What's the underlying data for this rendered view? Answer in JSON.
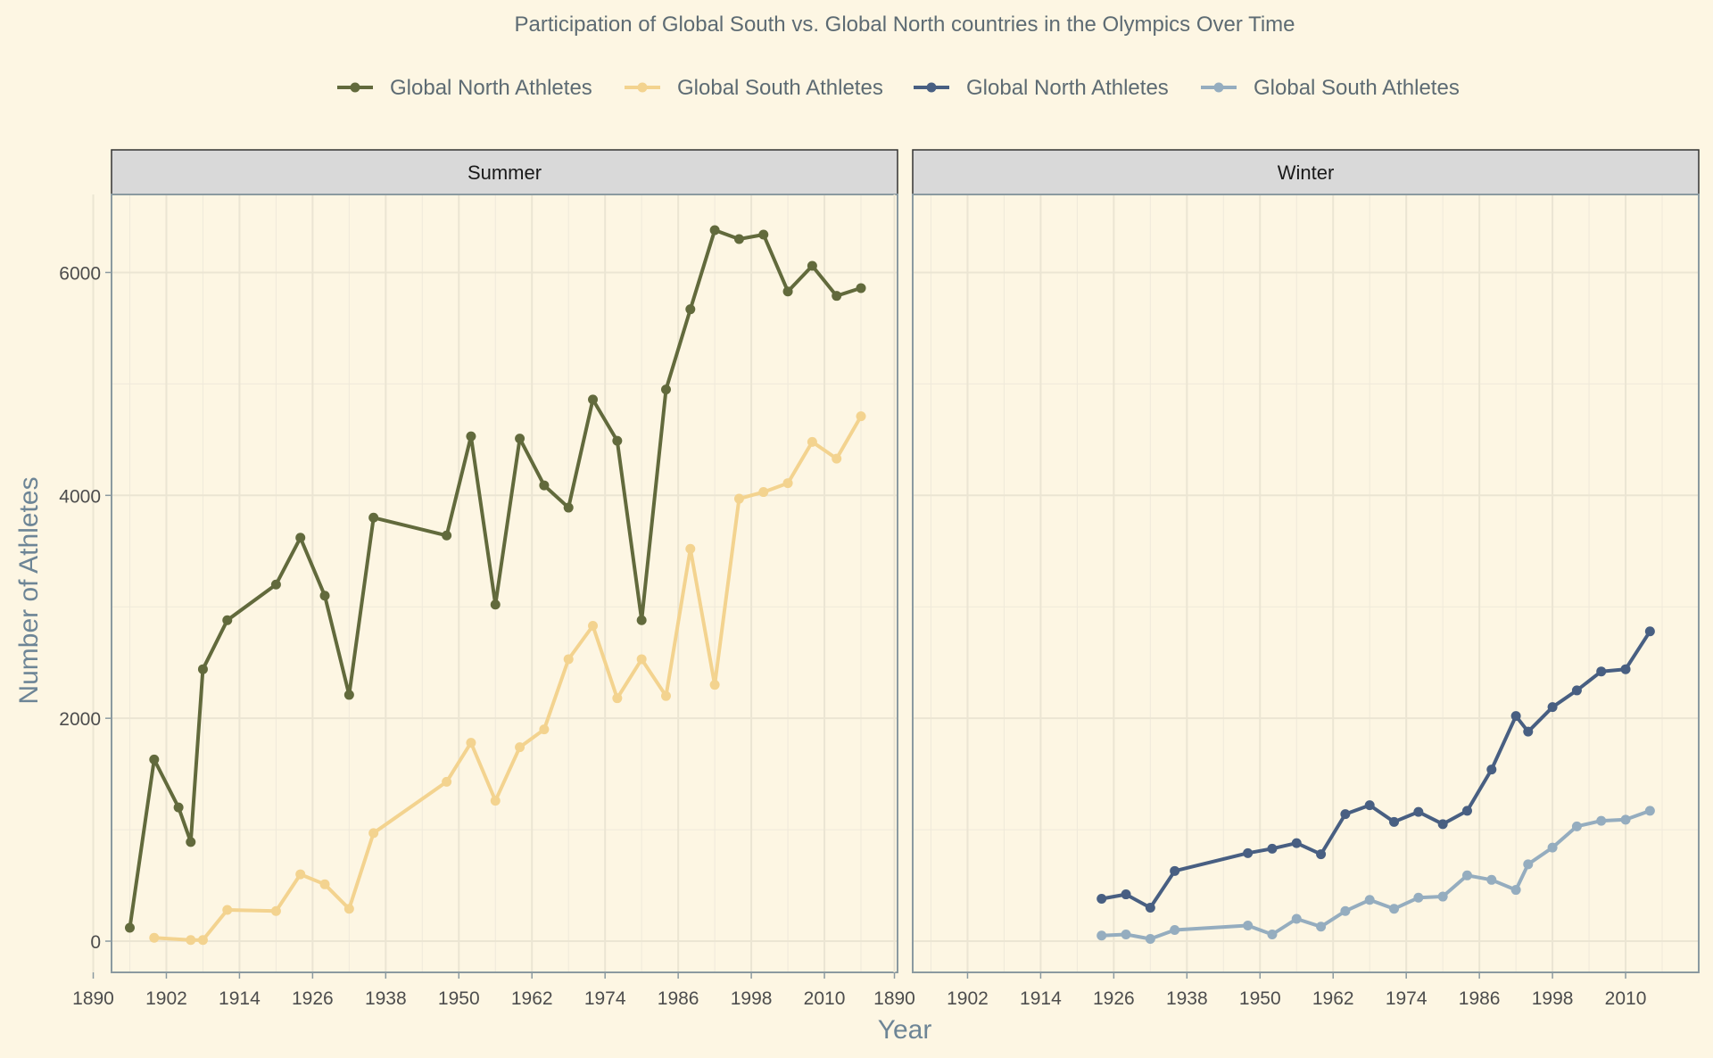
{
  "chart_data": {
    "type": "line",
    "title": "Participation of Global South vs. Global North countries in the Olympics Over Time",
    "xlabel": "Year",
    "ylabel": "Number of Athletes",
    "legend_position": "top",
    "grid": true,
    "x_ticks": [
      1890,
      1902,
      1914,
      1926,
      1938,
      1950,
      1962,
      1974,
      1986,
      1998,
      2010
    ],
    "y_ticks": [
      0,
      2000,
      4000,
      6000
    ],
    "xlim": [
      1893,
      2022
    ],
    "ylim": [
      -280,
      6700
    ],
    "legend": [
      {
        "label": "Global North Athletes",
        "color": "#626a3c"
      },
      {
        "label": "Global South Athletes",
        "color": "#f3d38f"
      },
      {
        "label": "Global North Athletes",
        "color": "#485f82"
      },
      {
        "label": "Global South Athletes",
        "color": "#95adbf"
      }
    ],
    "panels": [
      {
        "label": "Summer",
        "series": [
          {
            "name": "Global North Athletes",
            "color": "#626a3c",
            "x": [
              1896,
              1900,
              1904,
              1906,
              1908,
              1912,
              1920,
              1924,
              1928,
              1932,
              1936,
              1948,
              1952,
              1956,
              1960,
              1964,
              1968,
              1972,
              1976,
              1980,
              1984,
              1988,
              1992,
              1996,
              2000,
              2004,
              2008,
              2012,
              2016
            ],
            "y": [
              120,
              1630,
              1200,
              890,
              2440,
              2880,
              3200,
              3620,
              3100,
              2210,
              3800,
              3640,
              4530,
              3020,
              4510,
              4090,
              3890,
              4860,
              4490,
              2880,
              4950,
              5670,
              6380,
              6300,
              6340,
              5830,
              6060,
              5790,
              5860
            ]
          },
          {
            "name": "Global South Athletes",
            "color": "#f3d38f",
            "x": [
              1900,
              1906,
              1908,
              1912,
              1920,
              1924,
              1928,
              1932,
              1936,
              1948,
              1952,
              1956,
              1960,
              1964,
              1968,
              1972,
              1976,
              1980,
              1984,
              1988,
              1992,
              1996,
              2000,
              2004,
              2008,
              2012,
              2016
            ],
            "y": [
              30,
              10,
              10,
              280,
              270,
              600,
              510,
              290,
              970,
              1430,
              1780,
              1260,
              1740,
              1900,
              2530,
              2830,
              2180,
              2530,
              2200,
              3520,
              2300,
              3970,
              4030,
              4110,
              4480,
              4330,
              4710
            ]
          }
        ]
      },
      {
        "label": "Winter",
        "series": [
          {
            "name": "Global North Athletes",
            "color": "#485f82",
            "x": [
              1924,
              1928,
              1932,
              1936,
              1948,
              1952,
              1956,
              1960,
              1964,
              1968,
              1972,
              1976,
              1980,
              1984,
              1988,
              1992,
              1994,
              1998,
              2002,
              2006,
              2010,
              2014
            ],
            "y": [
              380,
              420,
              300,
              630,
              790,
              830,
              880,
              780,
              1140,
              1220,
              1070,
              1160,
              1050,
              1170,
              1540,
              2020,
              1880,
              2100,
              2250,
              2420,
              2440,
              2780
            ]
          },
          {
            "name": "Global South Athletes",
            "color": "#95adbf",
            "x": [
              1924,
              1928,
              1932,
              1936,
              1948,
              1952,
              1956,
              1960,
              1964,
              1968,
              1972,
              1976,
              1980,
              1984,
              1988,
              1992,
              1994,
              1998,
              2002,
              2006,
              2010,
              2014
            ],
            "y": [
              50,
              60,
              20,
              100,
              140,
              60,
              200,
              130,
              270,
              370,
              290,
              390,
              400,
              590,
              550,
              460,
              690,
              840,
              1030,
              1080,
              1090,
              1170
            ]
          }
        ]
      }
    ]
  }
}
